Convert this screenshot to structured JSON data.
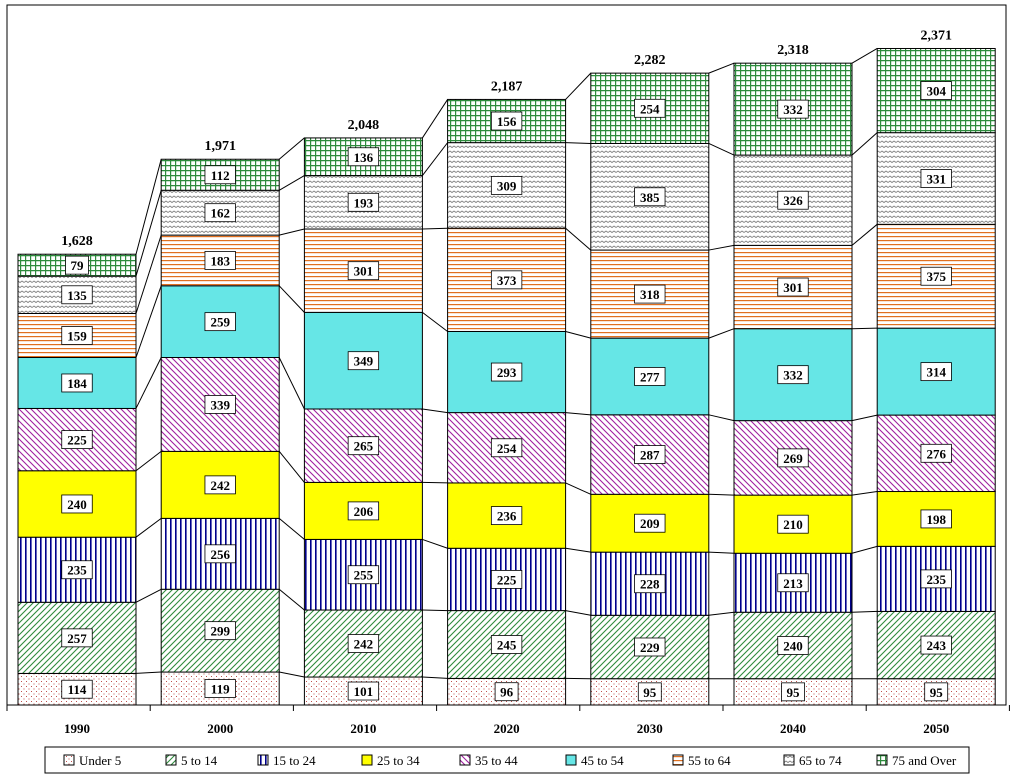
{
  "chart_data": {
    "type": "bar",
    "stacked": true,
    "categories": [
      "1990",
      "2000",
      "2010",
      "2020",
      "2030",
      "2040",
      "2050"
    ],
    "totals": [
      "1,628",
      "1,971",
      "2,048",
      "2,187",
      "2,282",
      "2,318",
      "2,371"
    ],
    "series": [
      {
        "name": "Under 5",
        "values": [
          114,
          119,
          101,
          96,
          95,
          95,
          95
        ],
        "pattern": "dots",
        "color": "#c0504d"
      },
      {
        "name": "5 to 14",
        "values": [
          257,
          299,
          242,
          245,
          229,
          240,
          243
        ],
        "pattern": "diag-up",
        "color": "#2e8b3d"
      },
      {
        "name": "15 to 24",
        "values": [
          235,
          256,
          255,
          225,
          228,
          213,
          235
        ],
        "pattern": "vertical",
        "color": "#00008b"
      },
      {
        "name": "25 to 34",
        "values": [
          240,
          242,
          206,
          236,
          209,
          210,
          198
        ],
        "pattern": "solid",
        "color": "#ffff00"
      },
      {
        "name": "35 to 44",
        "values": [
          225,
          339,
          265,
          254,
          287,
          269,
          276
        ],
        "pattern": "diag-down",
        "color": "#a020a0"
      },
      {
        "name": "45 to 54",
        "values": [
          184,
          259,
          349,
          293,
          277,
          332,
          314
        ],
        "pattern": "solid",
        "color": "#66e6e6"
      },
      {
        "name": "55 to 64",
        "values": [
          159,
          183,
          301,
          373,
          318,
          301,
          375
        ],
        "pattern": "horizontal",
        "color": "#e07020"
      },
      {
        "name": "65 to 74",
        "values": [
          135,
          162,
          193,
          309,
          385,
          326,
          331
        ],
        "pattern": "wave",
        "color": "#808080"
      },
      {
        "name": "75 and Over",
        "values": [
          79,
          112,
          136,
          156,
          254,
          332,
          304
        ],
        "pattern": "grid",
        "color": "#2e8b3d"
      }
    ],
    "ylim": [
      0,
      2510
    ],
    "grid": false,
    "legend": "bottom"
  }
}
